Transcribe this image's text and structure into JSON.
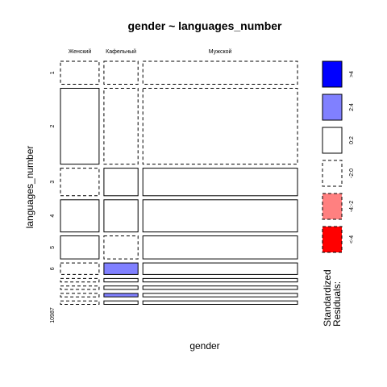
{
  "chart_data": {
    "type": "mosaic",
    "title": "gender ~ languages_number",
    "xlabel": "gender",
    "ylabel": "languages_number",
    "columns": [
      "Женский",
      "Кафельный",
      "Мужской"
    ],
    "rows": [
      "1",
      "2",
      "3",
      "4",
      "5",
      "6",
      "7",
      "8",
      "9",
      "10"
    ],
    "row_axis_text": "10987",
    "column_widths": [
      0.17,
      0.15,
      0.68
    ],
    "row_heights": [
      0.1,
      0.33,
      0.12,
      0.14,
      0.1,
      0.05,
      0.015,
      0.015,
      0.015,
      0.015
    ],
    "residual_class": [
      [
        0,
        0,
        0
      ],
      [
        1,
        0,
        0
      ],
      [
        0,
        1,
        1
      ],
      [
        1,
        1,
        1
      ],
      [
        1,
        0,
        1
      ],
      [
        0,
        3,
        1
      ],
      [
        0,
        1,
        1
      ],
      [
        0,
        1,
        1
      ],
      [
        0,
        3,
        1
      ],
      [
        0,
        1,
        1
      ]
    ],
    "legend": {
      "title_line1": "Standardized",
      "title_line2": "Residuals:",
      "entries": [
        {
          "label": ">4",
          "fill": "#0000ff",
          "dashed": false
        },
        {
          "label": "2:4",
          "fill": "#8080ff",
          "dashed": false
        },
        {
          "label": "0:2",
          "fill": "#ffffff",
          "dashed": false
        },
        {
          "label": "-2:0",
          "fill": "#ffffff",
          "dashed": true
        },
        {
          "label": "-4:-2",
          "fill": "#ff8080",
          "dashed": true
        },
        {
          "label": "<-4",
          "fill": "#ff0000",
          "dashed": true
        }
      ]
    }
  }
}
